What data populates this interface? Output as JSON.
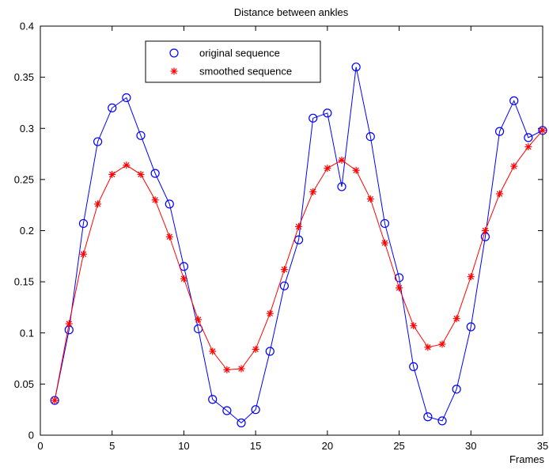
{
  "chart_data": {
    "type": "line",
    "title": "Distance between ankles",
    "xlabel": "Frames",
    "ylabel": "",
    "xlim": [
      0,
      35
    ],
    "ylim": [
      0,
      0.4
    ],
    "x_ticks": [
      0,
      5,
      10,
      15,
      20,
      25,
      30,
      35
    ],
    "y_ticks": [
      0,
      0.05,
      0.1,
      0.15,
      0.2,
      0.25,
      0.3,
      0.35,
      0.4
    ],
    "x_tick_labels": [
      "0",
      "5",
      "10",
      "15",
      "20",
      "25",
      "30",
      "35"
    ],
    "y_tick_labels": [
      "0",
      "0.05",
      "0.1",
      "0.15",
      "0.2",
      "0.25",
      "0.3",
      "0.35",
      "0.4"
    ],
    "grid": false,
    "legend_position": "top-left",
    "x": [
      1,
      2,
      3,
      4,
      5,
      6,
      7,
      8,
      9,
      10,
      11,
      12,
      13,
      14,
      15,
      16,
      17,
      18,
      19,
      20,
      21,
      22,
      23,
      24,
      25,
      26,
      27,
      28,
      29,
      30,
      31,
      32,
      33,
      34,
      35
    ],
    "series": [
      {
        "name": "original sequence",
        "marker": "circle",
        "color": "#0000ff",
        "values": [
          0.034,
          0.103,
          0.207,
          0.287,
          0.32,
          0.33,
          0.293,
          0.256,
          0.226,
          0.165,
          0.104,
          0.035,
          0.024,
          0.012,
          0.025,
          0.082,
          0.146,
          0.191,
          0.31,
          0.315,
          0.243,
          0.36,
          0.292,
          0.207,
          0.154,
          0.067,
          0.018,
          0.014,
          0.045,
          0.106,
          0.194,
          0.297,
          0.327,
          0.291,
          0.298
        ]
      },
      {
        "name": "smoothed sequence",
        "marker": "star",
        "color": "#ff0000",
        "values": [
          0.034,
          0.109,
          0.177,
          0.226,
          0.255,
          0.264,
          0.255,
          0.23,
          0.194,
          0.153,
          0.113,
          0.082,
          0.064,
          0.065,
          0.084,
          0.119,
          0.162,
          0.204,
          0.238,
          0.261,
          0.269,
          0.259,
          0.231,
          0.188,
          0.144,
          0.107,
          0.086,
          0.089,
          0.114,
          0.155,
          0.2,
          0.236,
          0.263,
          0.282,
          0.298
        ]
      }
    ]
  }
}
